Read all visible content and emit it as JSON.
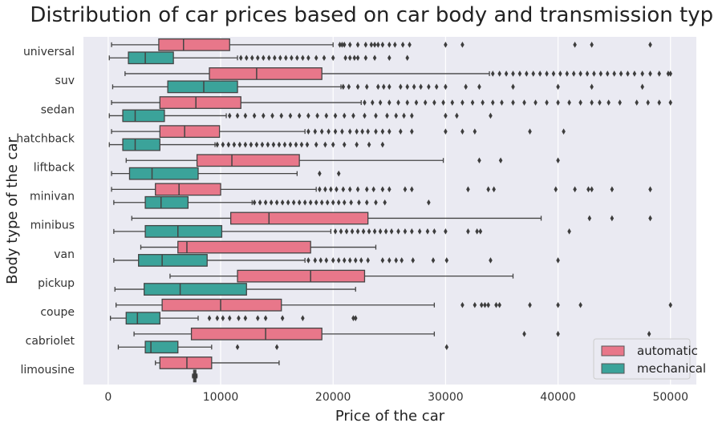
{
  "chart_data": {
    "type": "boxplot",
    "orientation": "horizontal",
    "title": "Distribution of car prices based on car body and transmission types",
    "xlabel": "Price of the car",
    "ylabel": "Body type of the car",
    "xlim": [
      -2200,
      52300
    ],
    "xticks": [
      0,
      10000,
      20000,
      30000,
      40000,
      50000
    ],
    "grid": true,
    "legend": {
      "placement": "bottom-right",
      "title": ""
    },
    "series": [
      {
        "name": "automatic",
        "color": "#E8778A"
      },
      {
        "name": "mechanical",
        "color": "#3BA39A"
      }
    ],
    "categories": [
      "universal",
      "suv",
      "sedan",
      "hatchback",
      "liftback",
      "minivan",
      "minibus",
      "van",
      "pickup",
      "coupe",
      "cabriolet",
      "limousine"
    ],
    "boxes": [
      {
        "category": "universal",
        "series": "automatic",
        "whisker_low": 300,
        "q1": 4500,
        "median": 6700,
        "q3": 10800,
        "whisker_high": 20000,
        "outliers": [
          20600,
          20800,
          21000,
          21500,
          22200,
          22900,
          23400,
          23700,
          24000,
          24400,
          25000,
          25500,
          26200,
          26800,
          30000,
          31500,
          41500,
          43000,
          48200
        ]
      },
      {
        "category": "universal",
        "series": "mechanical",
        "whisker_low": 100,
        "q1": 1800,
        "median": 3300,
        "q3": 5800,
        "whisker_high": 11500,
        "outliers": [
          11800,
          12300,
          12800,
          13300,
          13800,
          14300,
          14800,
          15300,
          15800,
          16300,
          16800,
          17300,
          17800,
          18500,
          19200,
          20000,
          21100,
          21500,
          21900,
          22200,
          22900,
          23700,
          25000,
          26600
        ]
      },
      {
        "category": "suv",
        "series": "automatic",
        "whisker_low": 1500,
        "q1": 9000,
        "median": 13200,
        "q3": 19000,
        "whisker_high": 33900,
        "outliers": [
          34200,
          34800,
          35400,
          36000,
          36600,
          37200,
          37800,
          38400,
          39000,
          39600,
          40200,
          40800,
          41400,
          42000,
          42600,
          43200,
          43800,
          44400,
          45000,
          45600,
          46200,
          46800,
          47500,
          48200,
          49000,
          49800,
          50000
        ]
      },
      {
        "category": "suv",
        "series": "mechanical",
        "whisker_low": 400,
        "q1": 5300,
        "median": 8500,
        "q3": 11500,
        "whisker_high": 20700,
        "outliers": [
          20900,
          21400,
          22200,
          23000,
          24000,
          24500,
          25000,
          26000,
          26600,
          27200,
          27800,
          28500,
          29200,
          30000,
          31800,
          33000,
          36000,
          40000,
          43000,
          47500
        ]
      },
      {
        "category": "sedan",
        "series": "automatic",
        "whisker_low": 300,
        "q1": 4600,
        "median": 7800,
        "q3": 11800,
        "whisker_high": 22500,
        "outliers": [
          22800,
          23500,
          24200,
          25000,
          25800,
          26600,
          27400,
          28200,
          29000,
          29800,
          30600,
          31500,
          32400,
          33300,
          34200,
          35000,
          36000,
          37000,
          38000,
          39000,
          40000,
          41000,
          42000,
          43000,
          43700,
          44500,
          45500,
          47000,
          48000,
          49000,
          50000
        ]
      },
      {
        "category": "sedan",
        "series": "mechanical",
        "whisker_low": 100,
        "q1": 1300,
        "median": 2400,
        "q3": 5000,
        "whisker_high": 10500,
        "outliers": [
          10800,
          11500,
          12200,
          13000,
          13800,
          14600,
          15400,
          16200,
          17000,
          17800,
          18600,
          19400,
          20200,
          21000,
          21800,
          22800,
          23800,
          24800,
          25600,
          26300,
          27000,
          30000,
          31000,
          34000
        ]
      },
      {
        "category": "hatchback",
        "series": "automatic",
        "whisker_low": 300,
        "q1": 4600,
        "median": 6800,
        "q3": 9900,
        "whisker_high": 17500,
        "outliers": [
          17800,
          18400,
          19000,
          19600,
          20200,
          20800,
          21500,
          22100,
          22600,
          23100,
          23800,
          24400,
          25000,
          26000,
          27000,
          30000,
          31500,
          32600,
          37500,
          40500
        ]
      },
      {
        "category": "hatchback",
        "series": "mechanical",
        "whisker_low": 100,
        "q1": 1300,
        "median": 2400,
        "q3": 4600,
        "whisker_high": 9500,
        "outliers": [
          9700,
          10200,
          10700,
          11200,
          11700,
          12200,
          12700,
          13200,
          13700,
          14200,
          14700,
          15200,
          15700,
          16200,
          16700,
          17200,
          17700,
          18500,
          19300,
          20000,
          21000,
          22100,
          23200,
          24400
        ]
      },
      {
        "category": "liftback",
        "series": "automatic",
        "whisker_low": 1600,
        "q1": 7900,
        "median": 11000,
        "q3": 17000,
        "whisker_high": 29800,
        "outliers": [
          33000,
          34900,
          40000
        ]
      },
      {
        "category": "liftback",
        "series": "mechanical",
        "whisker_low": 300,
        "q1": 1900,
        "median": 3900,
        "q3": 8000,
        "whisker_high": 16800,
        "outliers": [
          18800,
          20500
        ]
      },
      {
        "category": "minivan",
        "series": "automatic",
        "whisker_low": 300,
        "q1": 4200,
        "median": 6300,
        "q3": 10000,
        "whisker_high": 18500,
        "outliers": [
          18800,
          19300,
          19800,
          20300,
          20900,
          21500,
          22200,
          23000,
          23600,
          24400,
          25000,
          26400,
          27000,
          32000,
          33800,
          34300,
          39800,
          41500,
          42700,
          43000,
          44800,
          48200
        ]
      },
      {
        "category": "minivan",
        "series": "mechanical",
        "whisker_low": 500,
        "q1": 3300,
        "median": 4700,
        "q3": 7100,
        "whisker_high": 12800,
        "outliers": [
          13000,
          13500,
          14000,
          14500,
          15000,
          15500,
          16000,
          16500,
          17000,
          17500,
          18000,
          18500,
          19000,
          19500,
          20000,
          20500,
          21000,
          21600,
          22300,
          23000,
          23800,
          24600,
          28500
        ]
      },
      {
        "category": "minibus",
        "series": "automatic",
        "whisker_low": 2100,
        "q1": 10900,
        "median": 14300,
        "q3": 23100,
        "whisker_high": 38500,
        "outliers": [
          42800,
          44800,
          48200
        ]
      },
      {
        "category": "minibus",
        "series": "mechanical",
        "whisker_low": 500,
        "q1": 3300,
        "median": 6200,
        "q3": 10100,
        "whisker_high": 19800,
        "outliers": [
          20200,
          20700,
          21200,
          21700,
          22200,
          22700,
          23200,
          23700,
          24200,
          24700,
          25200,
          25800,
          26400,
          27000,
          27700,
          28400,
          29000,
          30000,
          32000,
          32800,
          33100,
          41000
        ]
      },
      {
        "category": "van",
        "series": "automatic",
        "whisker_low": 2900,
        "q1": 6200,
        "median": 7000,
        "q3": 18000,
        "whisker_high": 23800,
        "outliers": []
      },
      {
        "category": "van",
        "series": "mechanical",
        "whisker_low": 500,
        "q1": 2700,
        "median": 4800,
        "q3": 8800,
        "whisker_high": 17500,
        "outliers": [
          17800,
          18400,
          18900,
          19400,
          20000,
          20500,
          21000,
          21500,
          22000,
          22500,
          23100,
          24400,
          25000,
          25600,
          26100,
          27100,
          28900,
          30100,
          34000,
          40000
        ]
      },
      {
        "category": "pickup",
        "series": "automatic",
        "whisker_low": 5500,
        "q1": 11500,
        "median": 18000,
        "q3": 22800,
        "whisker_high": 36000,
        "outliers": []
      },
      {
        "category": "pickup",
        "series": "mechanical",
        "whisker_low": 600,
        "q1": 3200,
        "median": 6400,
        "q3": 12300,
        "whisker_high": 22000,
        "outliers": []
      },
      {
        "category": "coupe",
        "series": "automatic",
        "whisker_low": 700,
        "q1": 4800,
        "median": 10000,
        "q3": 15400,
        "whisker_high": 29000,
        "outliers": [
          31500,
          32600,
          33200,
          33500,
          33800,
          34500,
          34800,
          37500,
          40000,
          42000,
          50000
        ]
      },
      {
        "category": "coupe",
        "series": "mechanical",
        "whisker_low": 200,
        "q1": 1600,
        "median": 2600,
        "q3": 4600,
        "whisker_high": 8000,
        "outliers": [
          9000,
          9700,
          10200,
          10800,
          11600,
          12200,
          13300,
          14000,
          15500,
          17300,
          21800,
          22000
        ]
      },
      {
        "category": "cabriolet",
        "series": "automatic",
        "whisker_low": 2300,
        "q1": 7400,
        "median": 14000,
        "q3": 19000,
        "whisker_high": 29000,
        "outliers": [
          37000,
          40000,
          48100
        ]
      },
      {
        "category": "cabriolet",
        "series": "mechanical",
        "whisker_low": 900,
        "q1": 3300,
        "median": 3800,
        "q3": 6200,
        "whisker_high": 9200,
        "outliers": [
          11500,
          15000,
          30100
        ]
      },
      {
        "category": "limousine",
        "series": "automatic",
        "whisker_low": 4200,
        "q1": 4600,
        "median": 7000,
        "q3": 9200,
        "whisker_high": 15200,
        "outliers": []
      },
      {
        "category": "limousine",
        "series": "mechanical",
        "whisker_low": 7500,
        "q1": 7600,
        "median": 7700,
        "q3": 7800,
        "whisker_high": 7900,
        "outliers": [
          7600,
          7700,
          7800
        ]
      }
    ]
  }
}
